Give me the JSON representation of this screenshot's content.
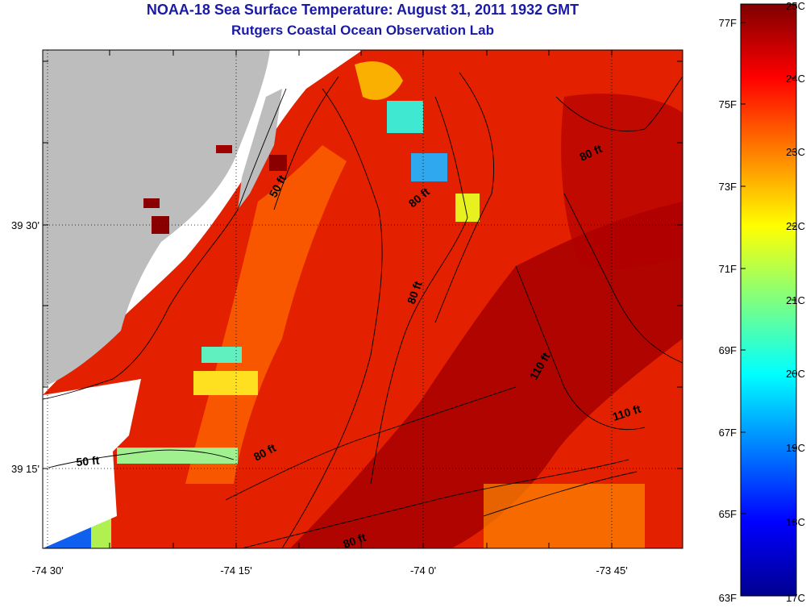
{
  "title": "NOAA-18 Sea Surface Temperature:  August 31, 2011 1932 GMT",
  "subtitle": "Rutgers Coastal Ocean Observation Lab",
  "x_ticks": [
    "-74 30'",
    "-74 15'",
    "-74 0'",
    "-73 45'"
  ],
  "y_ticks": [
    "39 30'",
    "39 15'"
  ],
  "colorbar": {
    "fahrenheit": [
      "77F",
      "75F",
      "73F",
      "71F",
      "69F",
      "67F",
      "65F",
      "63F"
    ],
    "celsius": [
      "25C",
      "24C",
      "23C",
      "22C",
      "21C",
      "20C",
      "19C",
      "18C",
      "17C"
    ],
    "range_c": [
      17,
      25
    ]
  },
  "contour_labels": [
    "50 ft",
    "80 ft",
    "80 ft",
    "80 ft",
    "110 ft",
    "110 ft",
    "50 ft",
    "80 ft",
    "80 ft"
  ],
  "colors": {
    "land": "#bdbdbd",
    "title": "#1a1aa6",
    "no_data": "#ffffff"
  }
}
